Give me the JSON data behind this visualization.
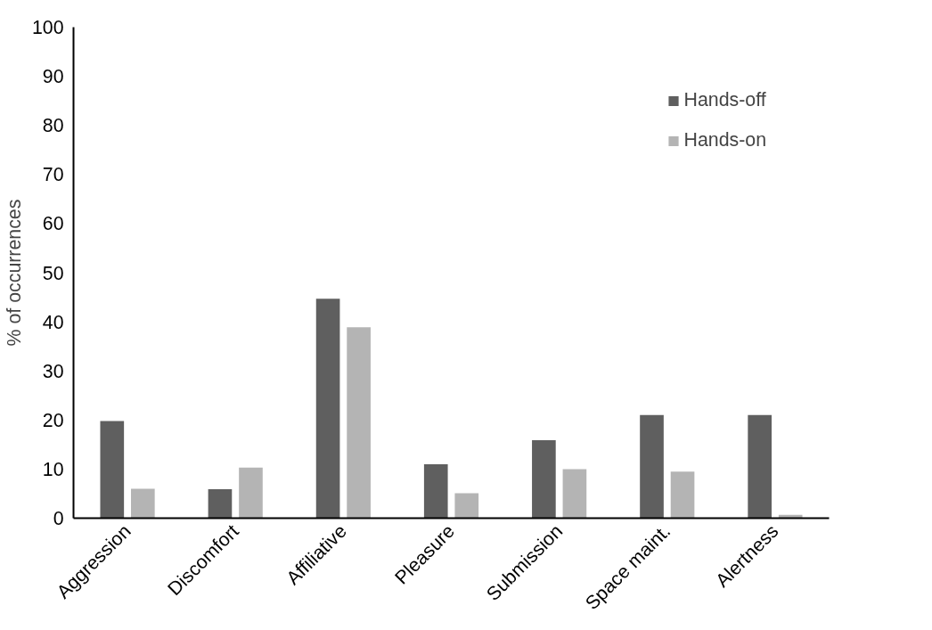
{
  "chart_data": {
    "type": "bar",
    "ylabel": "% of occurrences",
    "categories": [
      "Aggression",
      "Discomfort",
      "Affiliative",
      "Pleasure",
      "Submission",
      "Space maint.",
      "Alertness"
    ],
    "series": [
      {
        "name": "Hands-off",
        "color": "#5f5f5f",
        "values": [
          19.8,
          5.9,
          44.7,
          11,
          15.9,
          21,
          21
        ]
      },
      {
        "name": "Hands-on",
        "color": "#b4b4b4",
        "values": [
          6,
          10.3,
          38.9,
          5.1,
          10,
          9.5,
          0.7
        ]
      }
    ],
    "ylim": [
      0,
      100
    ],
    "yticks": [
      0,
      10,
      20,
      30,
      40,
      50,
      60,
      70,
      80,
      90,
      100
    ],
    "grid": false,
    "legend": "top right"
  }
}
